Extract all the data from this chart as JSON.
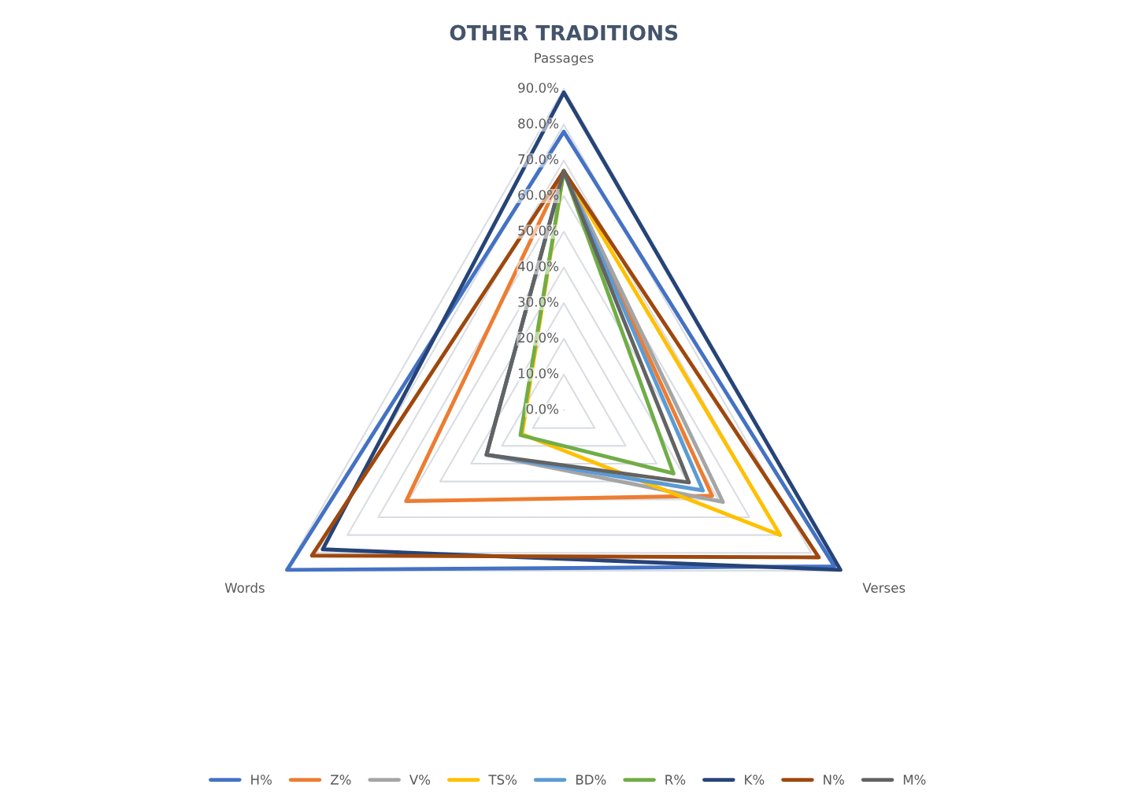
{
  "chart_data": {
    "type": "radar",
    "title": "OTHER TRADITIONS",
    "categories": [
      "Passages",
      "Verses",
      "Words"
    ],
    "series": [
      {
        "name": "H%",
        "color": "#4472c4",
        "values": [
          78,
          87.5,
          89.5
        ]
      },
      {
        "name": "Z%",
        "color": "#ed7d31",
        "values": [
          67,
          48,
          51
        ]
      },
      {
        "name": "V%",
        "color": "#a5a5a5",
        "values": [
          67,
          51.5,
          25
        ]
      },
      {
        "name": "TS%",
        "color": "#ffc000",
        "values": [
          67,
          70,
          13.5
        ]
      },
      {
        "name": "BD%",
        "color": "#5b9bd5",
        "values": [
          67,
          45,
          25
        ]
      },
      {
        "name": "R%",
        "color": "#70ad47",
        "values": [
          67,
          35.5,
          14
        ]
      },
      {
        "name": "K%",
        "color": "#264478",
        "values": [
          89,
          89.5,
          78
        ]
      },
      {
        "name": "N%",
        "color": "#9e480e",
        "values": [
          67,
          82.5,
          81.5
        ]
      },
      {
        "name": "M%",
        "color": "#636363",
        "values": [
          67,
          40.5,
          25
        ]
      }
    ],
    "ylim": [
      0,
      90
    ],
    "yticks": [
      {
        "value": 0,
        "label": "0.0%"
      },
      {
        "value": 10,
        "label": "10.0%"
      },
      {
        "value": 20,
        "label": "20.0%"
      },
      {
        "value": 30,
        "label": "30.0%"
      },
      {
        "value": 40,
        "label": "40.0%"
      },
      {
        "value": 50,
        "label": "50.0%"
      },
      {
        "value": 60,
        "label": "60.0%"
      },
      {
        "value": 70,
        "label": "70.0%"
      },
      {
        "value": 80,
        "label": "80.0%"
      },
      {
        "value": 90,
        "label": "90.0%"
      }
    ],
    "grid": true,
    "legend": "bottom"
  }
}
